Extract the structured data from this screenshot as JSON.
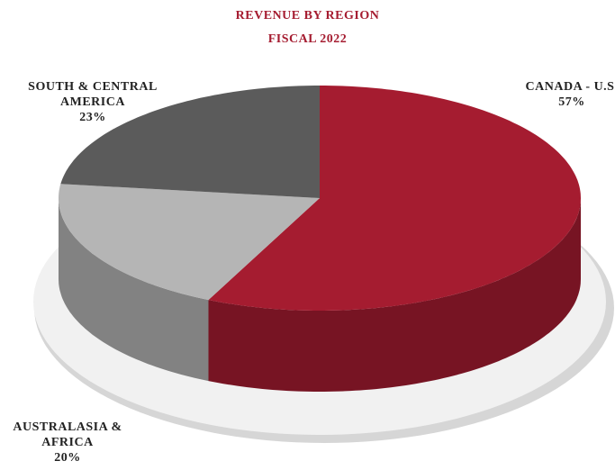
{
  "chart_data": {
    "type": "pie",
    "title": "REVENUE BY REGION",
    "subtitle": "FISCAL 2022",
    "categories": [
      "CANADA - U.S.",
      "AUSTRALASIA & AFRICA",
      "SOUTH & CENTRAL AMERICA"
    ],
    "values": [
      57,
      20,
      23
    ],
    "value_labels": [
      "57%",
      "20%",
      "23%"
    ],
    "colors": [
      "#a51c30",
      "#b5b5b5",
      "#5b5b5b"
    ]
  }
}
